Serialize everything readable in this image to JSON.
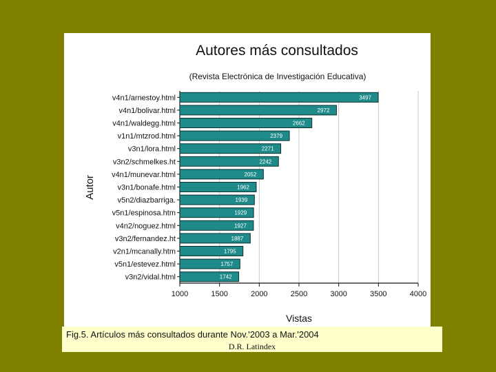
{
  "colors": {
    "background": "#808000",
    "bar_fill": "#1f8a8a",
    "bar_stroke": "#0d2f2f",
    "caption_bg": "#ffffcc"
  },
  "chart_data": {
    "type": "bar",
    "orientation": "horizontal",
    "title": "Autores más consultados",
    "subtitle": "(Revista Electrónica de Investigación Educativa)",
    "xlabel": "Vistas",
    "ylabel": "Autor",
    "xlim": [
      1000,
      4000
    ],
    "xticks": [
      "1000",
      "1500",
      "2000",
      "2500",
      "3000",
      "3500",
      "4000"
    ],
    "grid": "vertical",
    "categories": [
      "v4n1/arnestoy.html",
      "v4n1/bolivar.html",
      "v4n1/waldegg.html",
      "v1n1/mtzrod.html",
      "v3n1/lora.html",
      "v3n2/schmelkes.ht",
      "v4n1/munevar.html",
      "v3n1/bonafe.html",
      "v5n2/diazbarriga.",
      "v5n1/espinosa.htm",
      "v4n2/noguez.html",
      "v3n2/fernandez.ht",
      "v2n1/mcanally.htm",
      "v5n1/estevez.html",
      "v3n2/vidal.html"
    ],
    "values": [
      3497,
      2972,
      2662,
      2379,
      2271,
      2242,
      2052,
      1962,
      1939,
      1929,
      1927,
      1887,
      1795,
      1757,
      1742
    ]
  },
  "caption": {
    "line1": "Fig.5.  Artículos más consultados durante Nov.'2003 a Mar.'2004",
    "line2": "D.R. Latindex"
  }
}
